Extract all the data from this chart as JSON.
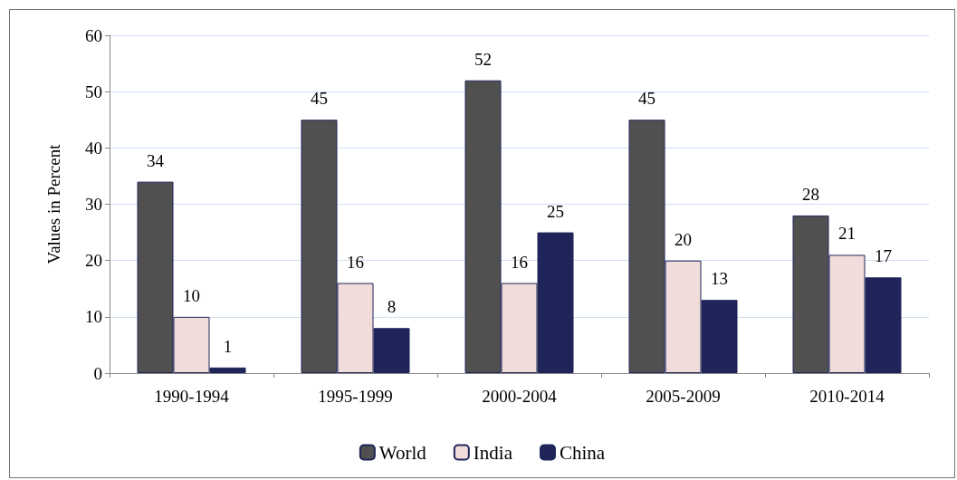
{
  "chart_data": {
    "type": "bar",
    "ylabel": "Values in Percent",
    "categories": [
      "1990-1994",
      "1995-1999",
      "2000-2004",
      "2005-2009",
      "2010-2014"
    ],
    "series": [
      {
        "name": "World",
        "color": "#505050",
        "values": [
          34,
          45,
          52,
          45,
          28
        ]
      },
      {
        "name": "India",
        "color": "#f2dcdb",
        "values": [
          10,
          16,
          16,
          20,
          21
        ]
      },
      {
        "name": "China",
        "color": "#1f2459",
        "values": [
          1,
          8,
          25,
          13,
          17
        ]
      }
    ],
    "ylim": [
      0,
      60
    ],
    "yticks": [
      0,
      10,
      20,
      30,
      40,
      50,
      60
    ],
    "grid": "y",
    "legend": "bottom",
    "data_labels": true
  }
}
